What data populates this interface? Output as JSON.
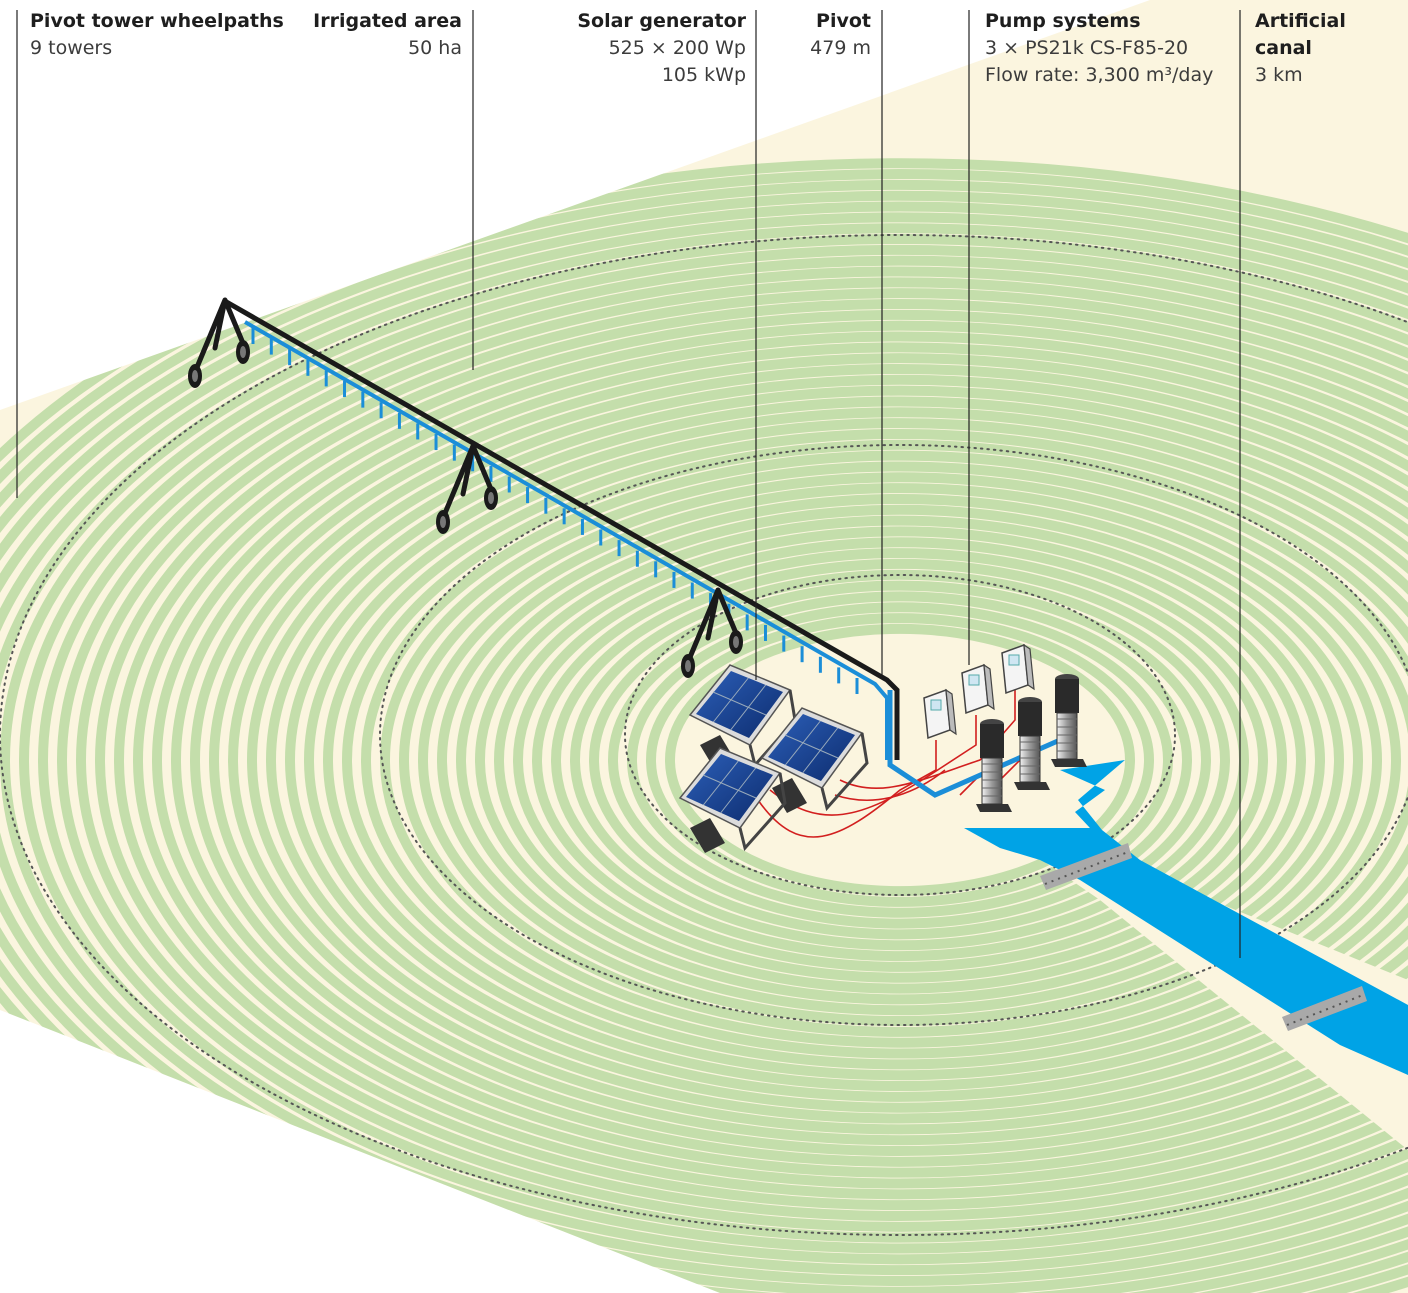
{
  "callouts": {
    "wheelpaths": {
      "title": "Pivot tower wheelpaths",
      "value": "9 towers"
    },
    "irrigated": {
      "title": "Irrigated area",
      "value": "50 ha"
    },
    "solar": {
      "title": "Solar generator",
      "value1": "525 × 200 Wp",
      "value2": "105 kWp"
    },
    "pivot": {
      "title": "Pivot",
      "value": "479 m"
    },
    "pumps": {
      "title": "Pump systems",
      "value1": "3 × PS21k CS-F85-20",
      "value2": "Flow rate: 3,300 m³/day"
    },
    "canal": {
      "title": "Artificial canal",
      "value": "3 km"
    }
  },
  "colors": {
    "background": "#fbf5df",
    "crop_rows": "#c4deab",
    "water": "#00a3e6",
    "pivot_frame": "#1a1a1a",
    "pipe": "#1b8ed8",
    "cable": "#d21f1f",
    "panel": "#16408c",
    "bridge": "#a8a8a8"
  },
  "icons": [
    "solar-panel-icon",
    "pump-icon",
    "controller-icon",
    "pivot-tower-icon"
  ]
}
